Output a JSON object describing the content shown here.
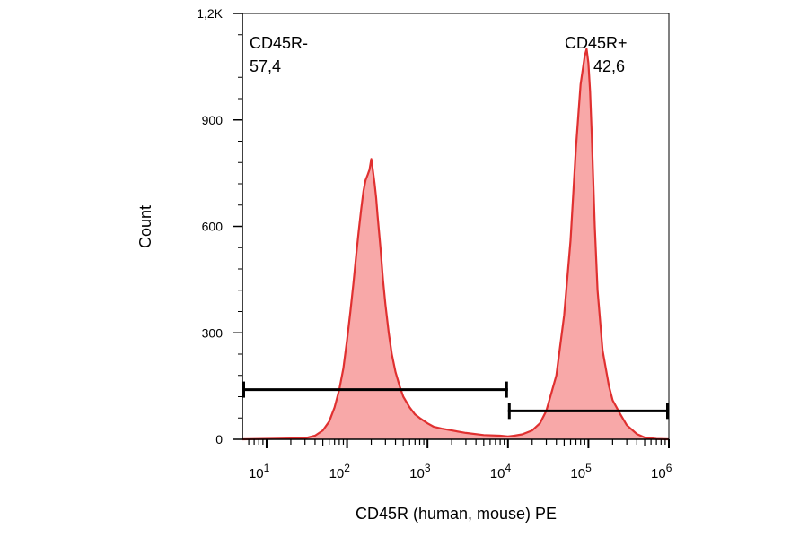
{
  "chart_data": {
    "type": "area",
    "title": "",
    "xlabel": "CD45R (human, mouse) PE",
    "ylabel": "Count",
    "x_scale": "log",
    "xlim": [
      5,
      1000000
    ],
    "ylim": [
      0,
      1200
    ],
    "x_ticks": [
      {
        "base": "10",
        "exp": "1",
        "value": 10
      },
      {
        "base": "10",
        "exp": "2",
        "value": 100
      },
      {
        "base": "10",
        "exp": "3",
        "value": 1000
      },
      {
        "base": "10",
        "exp": "4",
        "value": 10000
      },
      {
        "base": "10",
        "exp": "5",
        "value": 100000
      },
      {
        "base": "10",
        "exp": "6",
        "value": 1000000
      }
    ],
    "y_ticks": [
      {
        "label": "0",
        "value": 0
      },
      {
        "label": "300",
        "value": 300
      },
      {
        "label": "600",
        "value": 600
      },
      {
        "label": "900",
        "value": 900
      },
      {
        "label": "1,2K",
        "value": 1200
      }
    ],
    "grid": false,
    "fill_color": "#f8a8a8",
    "line_color": "#e03030",
    "series": [
      {
        "x": [
          5,
          30,
          40,
          50,
          60,
          70,
          80,
          90,
          100,
          110,
          120,
          130,
          140,
          150,
          160,
          170,
          180,
          190,
          200,
          210,
          220,
          230,
          240,
          260,
          280,
          300,
          330,
          360,
          400,
          450,
          500,
          600,
          700,
          800,
          1000,
          1200,
          1500,
          2000,
          3000,
          5000,
          8000,
          10000,
          12000,
          15000,
          20000,
          25000,
          30000,
          40000,
          50000,
          60000,
          70000,
          80000,
          90000,
          95000,
          100000,
          105000,
          110000,
          120000,
          130000,
          150000,
          180000,
          200000,
          250000,
          300000,
          400000,
          500000,
          700000,
          1000000
        ],
        "y": [
          0,
          3,
          10,
          25,
          50,
          90,
          140,
          200,
          280,
          360,
          440,
          520,
          590,
          650,
          700,
          730,
          745,
          760,
          790,
          755,
          720,
          680,
          630,
          540,
          450,
          380,
          300,
          240,
          190,
          150,
          120,
          90,
          70,
          60,
          45,
          35,
          30,
          25,
          18,
          12,
          10,
          8,
          10,
          14,
          25,
          45,
          80,
          180,
          350,
          560,
          820,
          1000,
          1080,
          1100,
          1060,
          980,
          860,
          600,
          420,
          250,
          150,
          110,
          70,
          40,
          15,
          5,
          1,
          0
        ]
      }
    ],
    "gates": [
      {
        "name": "CD45R-",
        "percent": "57,4",
        "x_range": [
          5,
          10000
        ],
        "y": 140
      },
      {
        "name": "CD45R+",
        "percent": "42,6",
        "x_range": [
          10000,
          1000000
        ],
        "y": 80
      }
    ]
  }
}
